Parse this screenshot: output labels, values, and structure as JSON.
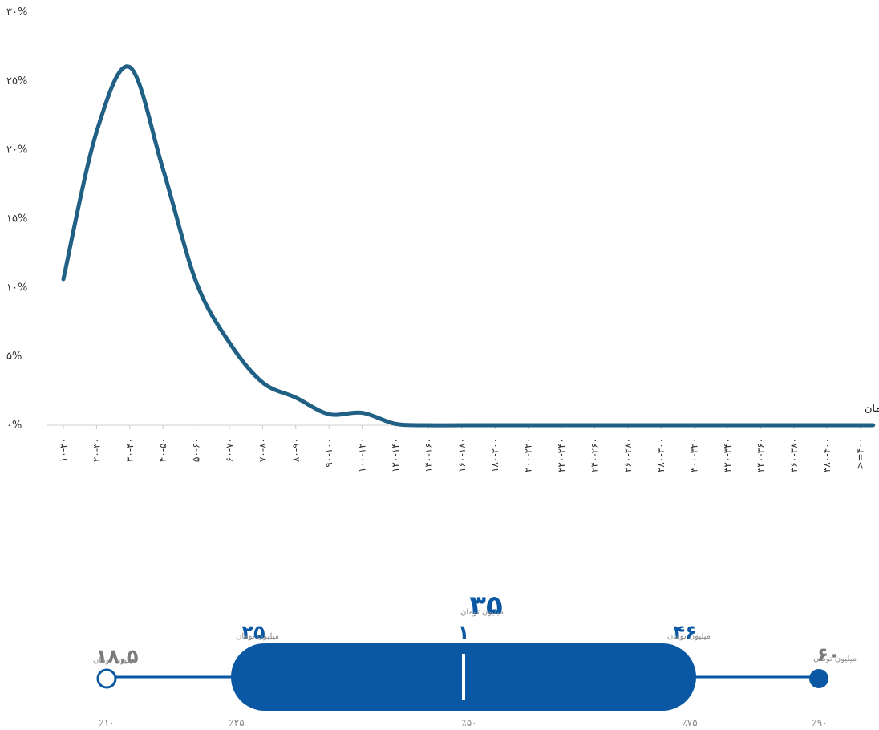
{
  "chart_data": [
    {
      "type": "line",
      "smooth": true,
      "color": "#1f6084",
      "series_label": "بازه حقوق به میلیون تومان",
      "y_ticks": [
        "۰%",
        "۵%",
        "۱۰%",
        "۱۵%",
        "۲۰%",
        "۲۵%",
        "۳۰%"
      ],
      "ylim": [
        0,
        30
      ],
      "categories": [
        "۱۰-۲۰",
        "۲۰-۳۰",
        "۳۰-۴۰",
        "۴۰-۵۰",
        "۵۰-۶۰",
        "۶۰-۷۰",
        "۷۰-۸۰",
        "۸۰-۹۰",
        "۹۰-۱۰۰",
        "۱۰۰-۱۲۰",
        "۱۲۰-۱۴۰",
        "۱۴۰-۱۶۰",
        "۱۶۰-۱۸۰",
        "۱۸۰-۲۰۰",
        "۲۰۰-۲۲۰",
        "۲۲۰-۲۴۰",
        "۲۴۰-۲۶۰",
        "۲۶۰-۲۸۰",
        "۲۸۰-۳۰۰",
        "۳۰۰-۳۲۰",
        "۳۲۰-۳۴۰",
        "۳۴۰-۳۶۰",
        "۳۶۰-۳۸۰",
        "۳۸۰-۴۰۰",
        ">=۴۰۰"
      ],
      "values": [
        10.6,
        21.3,
        26.0,
        18.6,
        10.4,
        6.0,
        3.1,
        2.0,
        0.8,
        0.9,
        0.1,
        0,
        0,
        0,
        0,
        0,
        0,
        0,
        0,
        0,
        0,
        0,
        0,
        0,
        0
      ]
    },
    {
      "type": "box",
      "color": "#0a58a3",
      "unit_label": "میلیون تومان",
      "median_marker": "۱",
      "points": [
        {
          "key": "p10",
          "value": 18.5,
          "value_label": "۱۸.۵",
          "percentile_label": "٪۱۰"
        },
        {
          "key": "p25",
          "value": 25,
          "value_label": "۲۵",
          "percentile_label": "٪۲۵"
        },
        {
          "key": "p50",
          "value": 35,
          "value_label": "۳۵",
          "percentile_label": "٪۵۰"
        },
        {
          "key": "p75",
          "value": 46,
          "value_label": "۴۶",
          "percentile_label": "٪۷۵"
        },
        {
          "key": "p90",
          "value": 60,
          "value_label": "۶۰",
          "percentile_label": "٪۹۰"
        }
      ]
    }
  ]
}
